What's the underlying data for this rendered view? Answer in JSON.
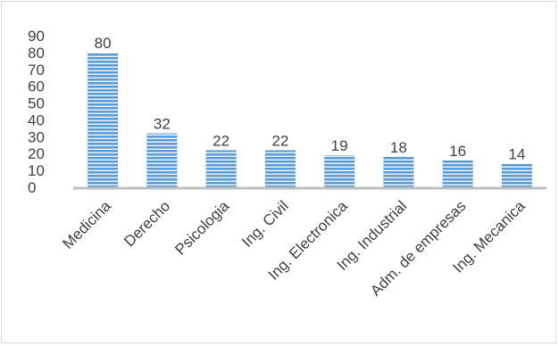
{
  "chart_data": {
    "type": "bar",
    "title": "",
    "xlabel": "",
    "ylabel": "",
    "categories": [
      "Medicina",
      "Derecho",
      "Psicologia",
      "Ing. Civil",
      "Ing. Electronica",
      "Ing. Industrial",
      "Adm. de empresas",
      "Ing. Mecanica"
    ],
    "values": [
      80,
      32,
      22,
      22,
      19,
      18,
      16,
      14
    ],
    "data_labels": [
      "80",
      "32",
      "22",
      "22",
      "19",
      "18",
      "16",
      "14"
    ],
    "ylim": [
      0,
      90
    ],
    "yticks": [
      "0",
      "10",
      "20",
      "30",
      "40",
      "50",
      "60",
      "70",
      "80",
      "90"
    ],
    "grid": false,
    "legend": "none",
    "bar_color": "#5b9bd5",
    "bar_stripe_color": "#ffffff",
    "axis_color": "#bfbfbf"
  }
}
